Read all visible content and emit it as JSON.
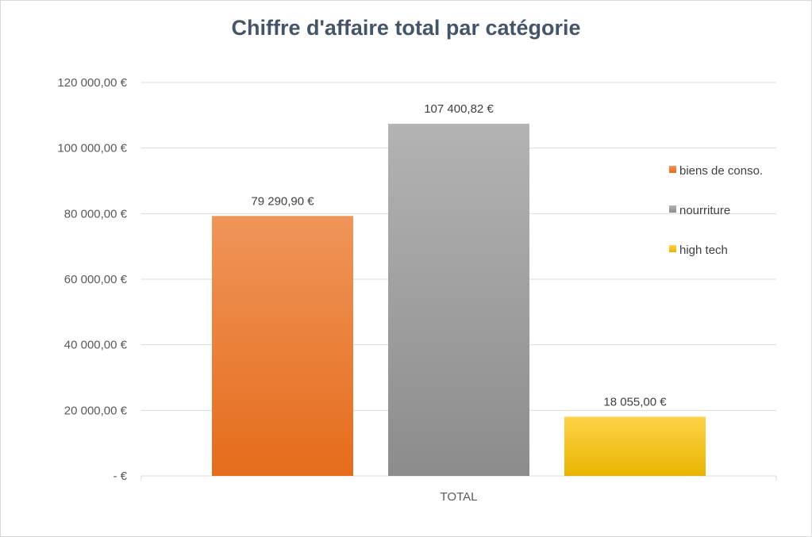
{
  "chart_data": {
    "type": "bar",
    "title": "Chiffre d'affaire total par catégorie",
    "categories": [
      "TOTAL"
    ],
    "series": [
      {
        "name": "biens de conso.",
        "values": [
          79290.9
        ],
        "label": "79 290,90 €",
        "color_top": "#f0955a",
        "color_bottom": "#e56c1b"
      },
      {
        "name": "nourriture",
        "values": [
          107400.82
        ],
        "label": "107 400,82 €",
        "color_top": "#b3b3b3",
        "color_bottom": "#8c8c8c"
      },
      {
        "name": "high tech",
        "values": [
          18055.0
        ],
        "label": "18 055,00 €",
        "color_top": "#ffd248",
        "color_bottom": "#e7b500"
      }
    ],
    "ylim": [
      0,
      120000
    ],
    "y_ticks": [
      {
        "value": 0,
        "label": "-   €"
      },
      {
        "value": 20000,
        "label": "20 000,00 €"
      },
      {
        "value": 40000,
        "label": "40 000,00 €"
      },
      {
        "value": 60000,
        "label": "60 000,00 €"
      },
      {
        "value": 80000,
        "label": "80 000,00 €"
      },
      {
        "value": 100000,
        "label": "100 000,00 €"
      },
      {
        "value": 120000,
        "label": "120 000,00 €"
      }
    ],
    "grid": true,
    "legend_position": "right"
  }
}
